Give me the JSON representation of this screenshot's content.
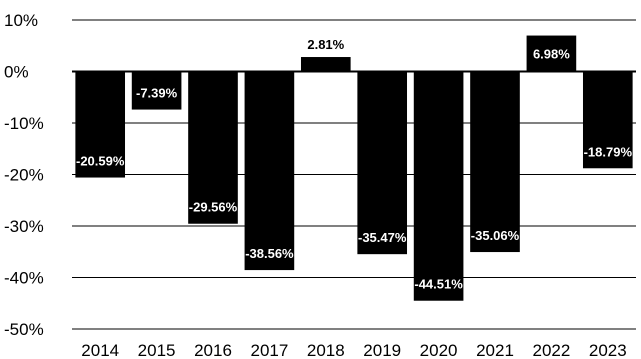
{
  "chart_data": {
    "type": "bar",
    "categories": [
      "2014",
      "2015",
      "2016",
      "2017",
      "2018",
      "2019",
      "2020",
      "2021",
      "2022",
      "2023"
    ],
    "values": [
      -20.59,
      -7.39,
      -29.56,
      -38.56,
      2.81,
      -35.47,
      -44.51,
      -35.06,
      6.98,
      -18.79
    ],
    "data_labels": [
      "-20.59%",
      "-7.39%",
      "-29.56%",
      "-38.56%",
      "2.81%",
      "-35.47%",
      "-44.51%",
      "-35.06%",
      "6.98%",
      "-18.79%"
    ],
    "ylim": [
      -50,
      10
    ],
    "y_ticks": [
      10,
      0,
      -10,
      -20,
      -30,
      -40,
      -50
    ],
    "y_tick_labels": [
      "10%",
      "0%",
      "-10%",
      "-20%",
      "-30%",
      "-40%",
      "-50%"
    ],
    "grid": true,
    "bar_color": "#000000",
    "label_color": "#ffffff",
    "title": "",
    "xlabel": "",
    "ylabel": ""
  }
}
